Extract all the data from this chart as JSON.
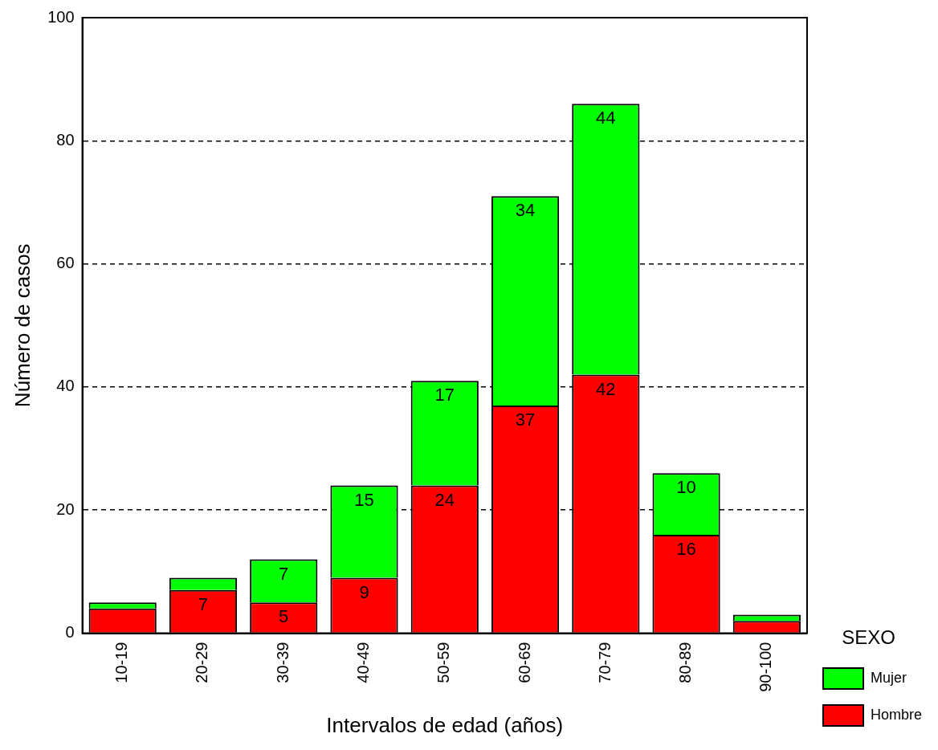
{
  "chart_data": {
    "type": "bar",
    "stacked": true,
    "xlabel": "Intervalos de edad (años)",
    "ylabel": "Número de casos",
    "legend_title": "SEXO",
    "legend": "right",
    "categories": [
      "10-19",
      "20-29",
      "30-39",
      "40-49",
      "50-59",
      "60-69",
      "70-79",
      "80-89",
      "90-100"
    ],
    "series": [
      {
        "name": "Hombre",
        "color": "#ff0000",
        "values": [
          4,
          7,
          5,
          9,
          24,
          37,
          42,
          16,
          2
        ],
        "value_labels": [
          null,
          "7",
          "5",
          "9",
          "24",
          "37",
          "42",
          "16",
          null
        ]
      },
      {
        "name": "Mujer",
        "color": "#00ff00",
        "values": [
          1,
          2,
          7,
          15,
          17,
          34,
          44,
          10,
          1
        ],
        "value_labels": [
          null,
          null,
          "7",
          "15",
          "17",
          "34",
          "44",
          "10",
          null
        ]
      }
    ],
    "ylim": [
      0,
      100
    ],
    "yticks": [
      0,
      20,
      40,
      60,
      80,
      100
    ],
    "grid": "y"
  }
}
